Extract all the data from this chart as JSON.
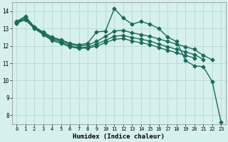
{
  "xlabel": "Humidex (Indice chaleur)",
  "bg_color": "#d6f0ee",
  "grid_color": "#b8d8d4",
  "line_color": "#1a6b5a",
  "xlim": [
    -0.5,
    23.5
  ],
  "ylim": [
    7.5,
    14.5
  ],
  "xticks": [
    0,
    1,
    2,
    3,
    4,
    5,
    6,
    7,
    8,
    9,
    10,
    11,
    12,
    13,
    14,
    15,
    16,
    17,
    18,
    19,
    20,
    21,
    22,
    23
  ],
  "yticks": [
    8,
    9,
    10,
    11,
    12,
    13,
    14
  ],
  "series": [
    {
      "x": [
        0,
        1,
        2,
        3,
        4,
        5,
        6,
        7,
        8,
        9,
        10,
        11,
        12,
        13,
        14,
        15,
        16,
        17,
        18,
        19,
        20,
        21,
        22,
        23
      ],
      "y": [
        13.4,
        13.7,
        13.1,
        12.8,
        12.5,
        12.35,
        12.15,
        12.05,
        12.15,
        12.8,
        12.85,
        14.15,
        13.6,
        13.25,
        13.4,
        13.25,
        13.0,
        12.5,
        12.25,
        11.15,
        10.85,
        10.8,
        9.95,
        7.6
      ],
      "marker": "D",
      "markersize": 2.5,
      "linewidth": 1.0
    },
    {
      "x": [
        0,
        1,
        2,
        3,
        4,
        5,
        6,
        7,
        8,
        9,
        10,
        11,
        12,
        13,
        14,
        15,
        16,
        17,
        18,
        19,
        20,
        21,
        22
      ],
      "y": [
        13.35,
        13.65,
        13.1,
        12.75,
        12.45,
        12.3,
        12.1,
        12.0,
        12.05,
        12.25,
        12.55,
        12.85,
        12.9,
        12.75,
        12.65,
        12.55,
        12.4,
        12.25,
        12.1,
        11.95,
        11.8,
        11.45,
        11.2
      ],
      "marker": "D",
      "markersize": 2.5,
      "linewidth": 1.0
    },
    {
      "x": [
        0,
        1,
        2,
        3,
        4,
        5,
        6,
        7,
        8,
        9,
        10,
        11,
        12,
        13,
        14,
        15,
        16,
        17,
        18,
        19,
        20,
        21
      ],
      "y": [
        13.35,
        13.55,
        13.05,
        12.7,
        12.38,
        12.22,
        12.0,
        11.9,
        11.92,
        12.1,
        12.32,
        12.55,
        12.6,
        12.48,
        12.38,
        12.28,
        12.1,
        11.95,
        11.8,
        11.65,
        11.5,
        11.22
      ],
      "marker": "D",
      "markersize": 2.5,
      "linewidth": 1.0
    },
    {
      "x": [
        0,
        1,
        2,
        3,
        4,
        5,
        6,
        7,
        8,
        9,
        10,
        11,
        12,
        13,
        14,
        15,
        16,
        17,
        18,
        19,
        20
      ],
      "y": [
        13.3,
        13.5,
        13.0,
        12.65,
        12.3,
        12.15,
        11.95,
        11.85,
        11.88,
        11.98,
        12.18,
        12.38,
        12.42,
        12.28,
        12.18,
        12.08,
        11.9,
        11.75,
        11.6,
        11.45,
        11.3
      ],
      "marker": "D",
      "markersize": 2.5,
      "linewidth": 1.0
    }
  ]
}
